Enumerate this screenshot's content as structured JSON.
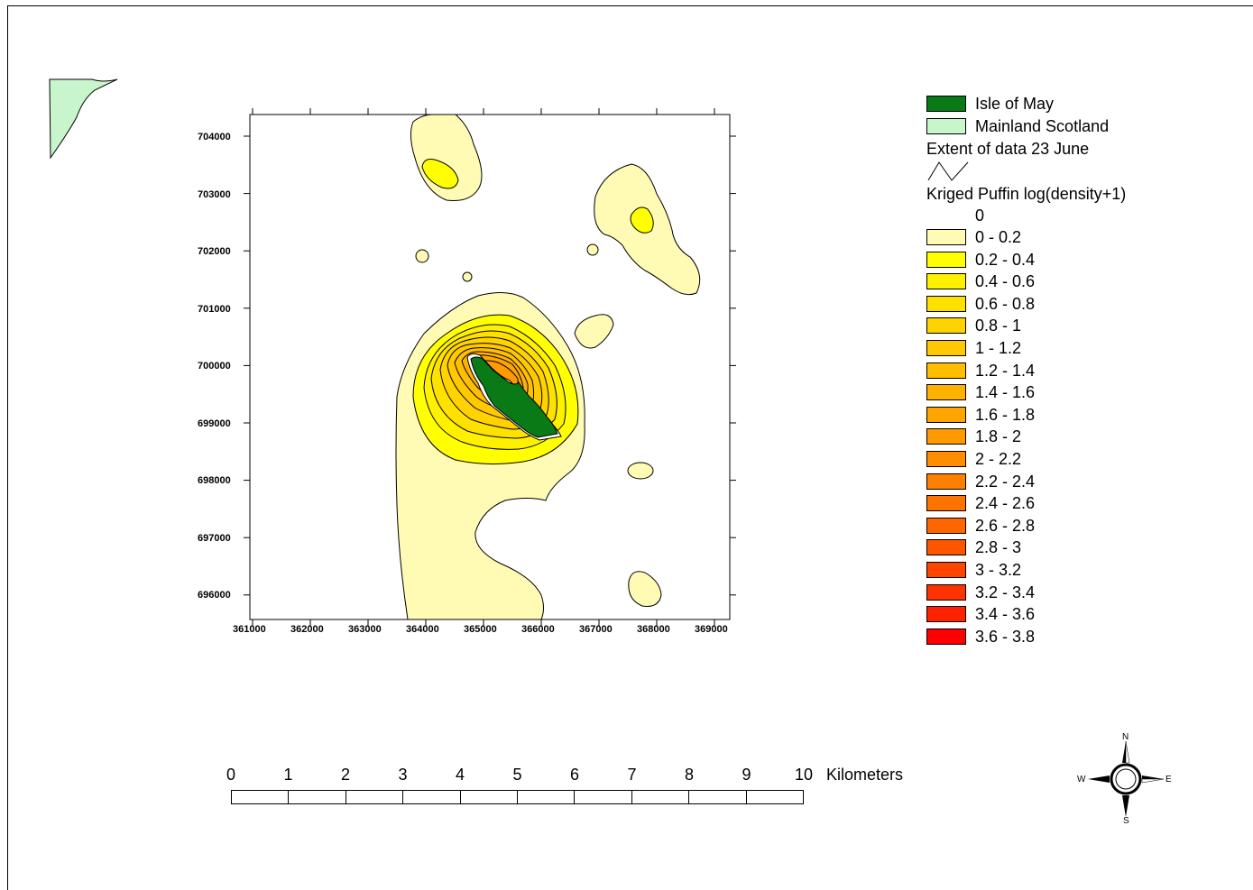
{
  "legend": {
    "isle_of_may": {
      "label": "Isle of May",
      "color": "#0a7a17"
    },
    "mainland": {
      "label": "Mainland Scotland",
      "color": "#c8f5cc"
    },
    "extent_label": "Extent of data 23 June",
    "kriged_title": "Kriged Puffin log(density+1)",
    "zero_label": "0",
    "classes": [
      {
        "label": "0 - 0.2",
        "color": "#fffab4"
      },
      {
        "label": "0.2 - 0.4",
        "color": "#ffff00"
      },
      {
        "label": "0.4 - 0.6",
        "color": "#fff000"
      },
      {
        "label": "0.6 - 0.8",
        "color": "#ffe100"
      },
      {
        "label": "0.8 - 1",
        "color": "#ffd200"
      },
      {
        "label": "1 - 1.2",
        "color": "#ffc800"
      },
      {
        "label": "1.2 - 1.4",
        "color": "#ffbe00"
      },
      {
        "label": "1.4 - 1.6",
        "color": "#ffb100"
      },
      {
        "label": "1.6 - 1.8",
        "color": "#ffa500"
      },
      {
        "label": "1.8 - 2",
        "color": "#ff9a00"
      },
      {
        "label": "2 - 2.2",
        "color": "#ff8d00"
      },
      {
        "label": "2.2 - 2.4",
        "color": "#ff8000"
      },
      {
        "label": "2.4 - 2.6",
        "color": "#ff7300"
      },
      {
        "label": "2.6 - 2.8",
        "color": "#ff6600"
      },
      {
        "label": "2.8 - 3",
        "color": "#ff5500"
      },
      {
        "label": "3 - 3.2",
        "color": "#ff4400"
      },
      {
        "label": "3.2 - 3.4",
        "color": "#ff3300"
      },
      {
        "label": "3.4 - 3.6",
        "color": "#ff2200"
      },
      {
        "label": "3.6 - 3.8",
        "color": "#ff0000"
      }
    ]
  },
  "map": {
    "x_ticks": [
      "361000",
      "362000",
      "363000",
      "364000",
      "365000",
      "366000",
      "367000",
      "368000",
      "369000"
    ],
    "y_ticks": [
      "704000",
      "703000",
      "702000",
      "701000",
      "700000",
      "699000",
      "698000",
      "697000",
      "696000"
    ]
  },
  "scalebar": {
    "numbers": [
      "0",
      "1",
      "2",
      "3",
      "4",
      "5",
      "6",
      "7",
      "8",
      "9",
      "10"
    ],
    "unit": "Kilometers"
  },
  "compass": {
    "n": "N",
    "s": "S",
    "e": "E",
    "w": "W"
  }
}
